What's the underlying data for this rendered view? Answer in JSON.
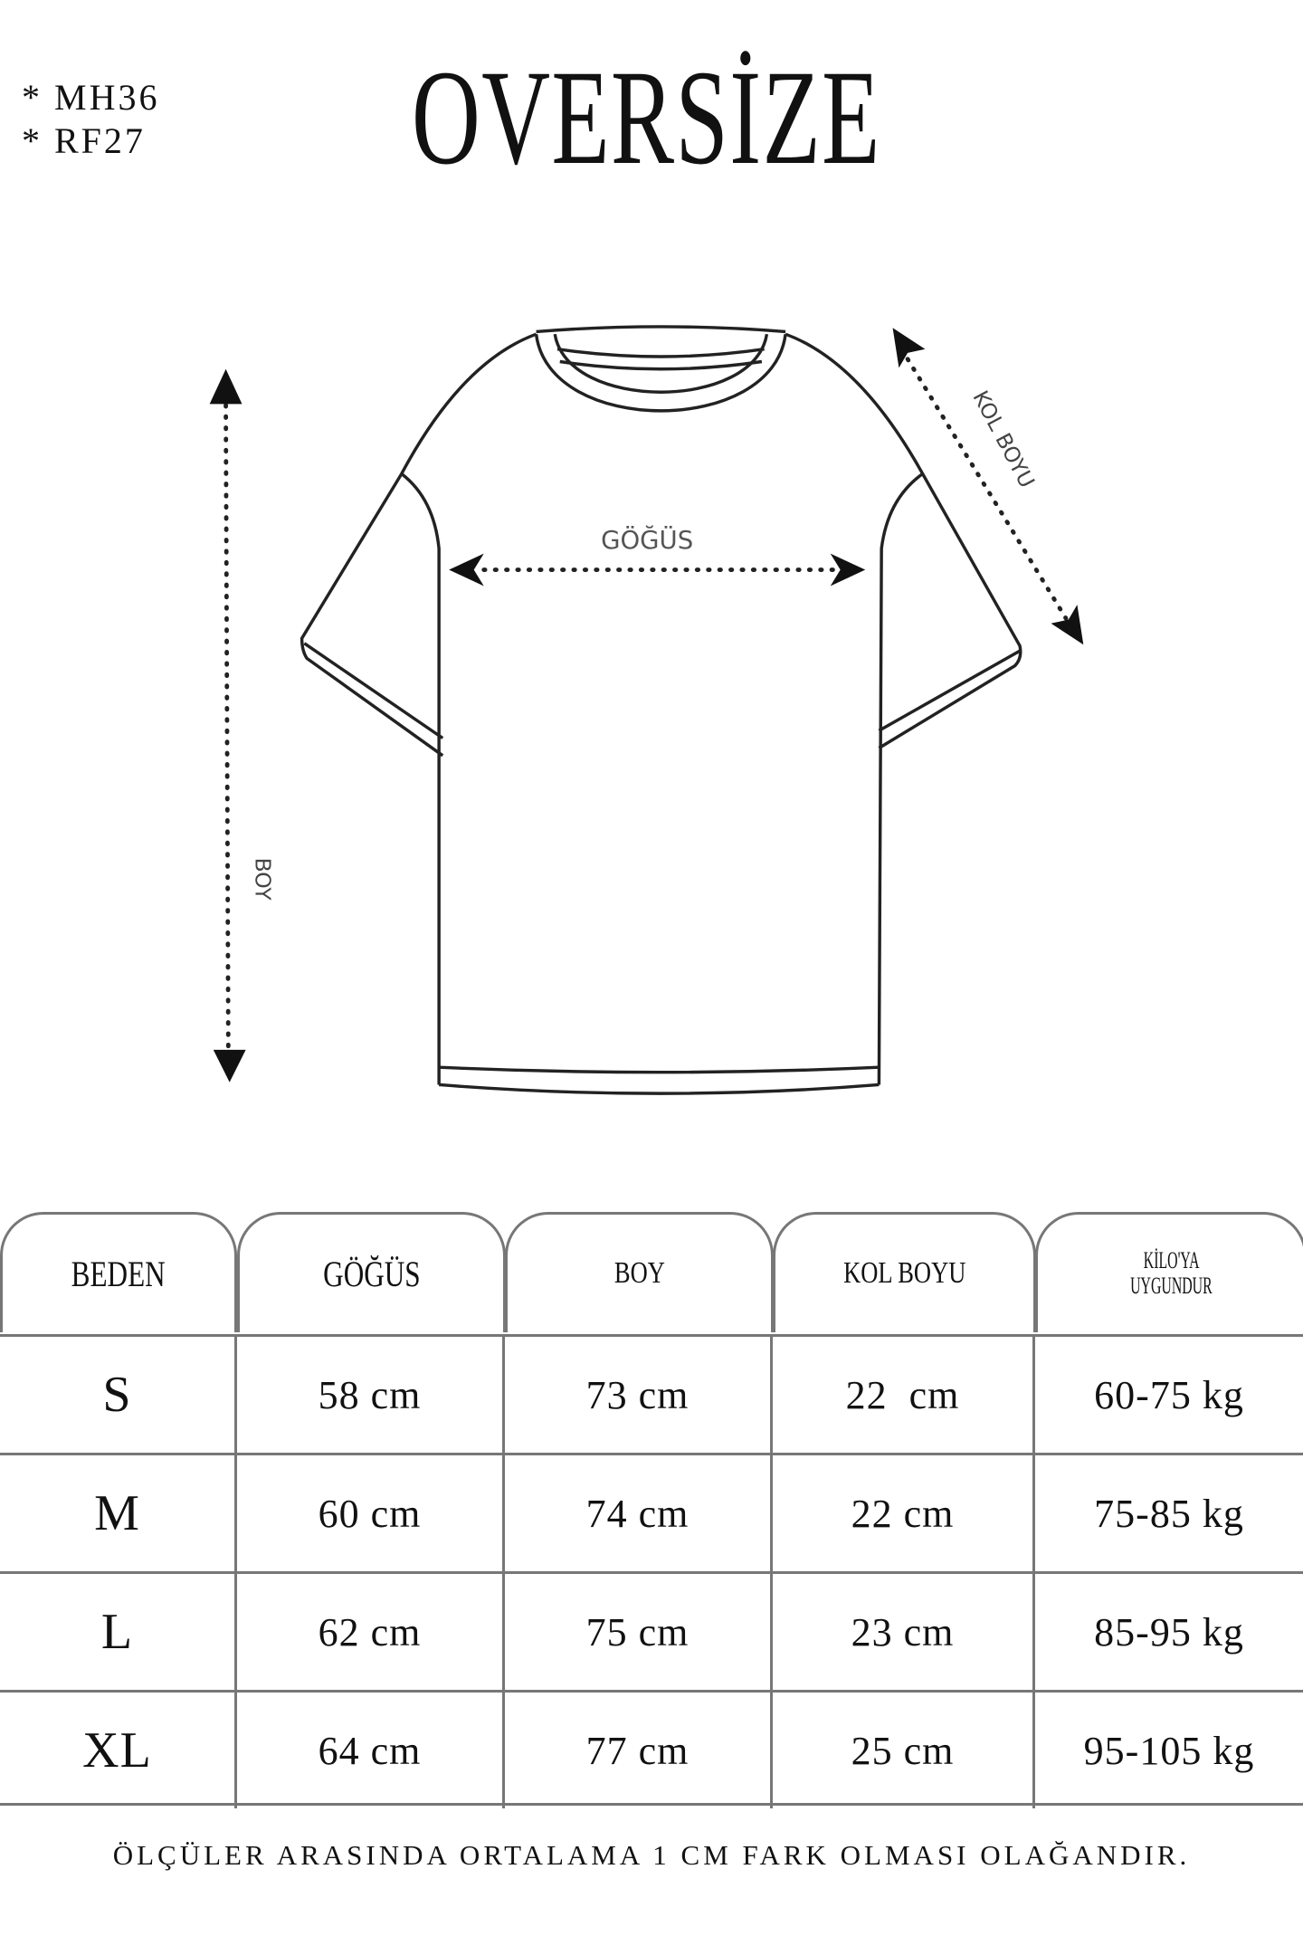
{
  "header": {
    "codes": [
      "*  MH36",
      "*  RF27"
    ],
    "title": "OVERSİZE"
  },
  "diagram": {
    "chest_label": "GÖĞÜS",
    "length_label": "BOY",
    "sleeve_label": "KOL BOYU"
  },
  "table": {
    "headers": [
      "BEDEN",
      "GÖĞÜS",
      "BOY",
      "KOL BOYU",
      "KİLO'YA",
      "UYGUNDUR"
    ],
    "rows": [
      [
        "S",
        "58 cm",
        "73 cm",
        "22  cm",
        "60-75 kg"
      ],
      [
        "M",
        "60 cm",
        "74 cm",
        "22 cm",
        "75-85 kg"
      ],
      [
        "L",
        "62 cm",
        "75 cm",
        "23 cm",
        "85-95 kg"
      ],
      [
        "XL",
        "64 cm",
        "77 cm",
        "25 cm",
        "95-105 kg"
      ]
    ]
  },
  "footer": {
    "note": "ÖLÇÜLER ARASINDA ORTALAMA 1 CM FARK OLMASI OLAĞANDIR."
  }
}
